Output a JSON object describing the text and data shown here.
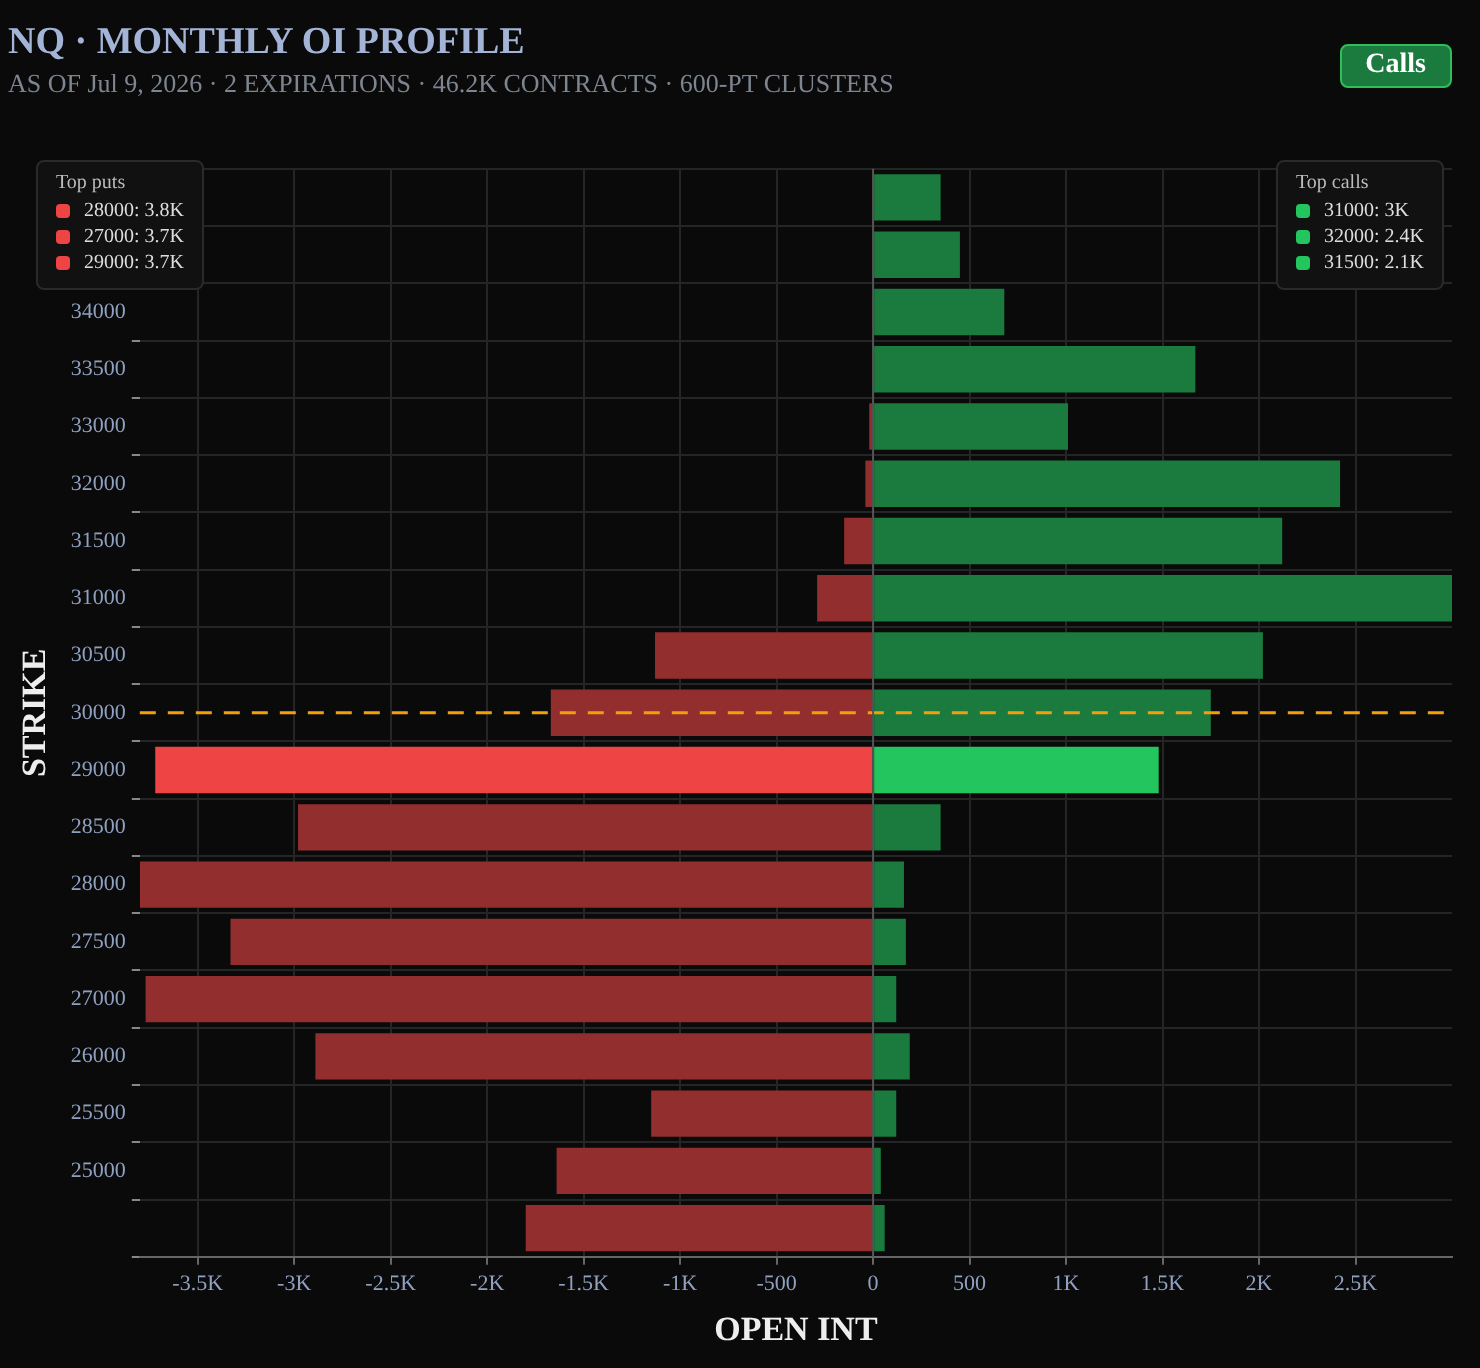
{
  "chart_data": {
    "type": "bar",
    "orientation": "horizontal",
    "title": "NQ · MONTHLY OI PROFILE",
    "subtitle": "AS OF Jul 9, 2026 · 2 EXPIRATIONS · 46.2K CONTRACTS · 600-PT CLUSTERS",
    "xlabel": "OPEN INT",
    "ylabel": "STRIKE",
    "categories": [
      null,
      null,
      "34000",
      "33500",
      "33000",
      "32000",
      "31500",
      "31000",
      "30500",
      "30000",
      "29000",
      "28500",
      "28000",
      "27500",
      "27000",
      "26000",
      "25500",
      "25000",
      null
    ],
    "series": [
      {
        "color": "#922e2e",
        "colors": [
          "#922e2e",
          "#922e2e",
          "#922e2e",
          "#922e2e",
          "#922e2e",
          "#922e2e",
          "#922e2e",
          "#922e2e",
          "#922e2e",
          "#922e2e",
          "#ef4444",
          "#922e2e",
          "#922e2e",
          "#922e2e",
          "#922e2e",
          "#922e2e",
          "#922e2e",
          "#922e2e",
          "#922e2e"
        ],
        "values": [
          0,
          0,
          0,
          0,
          -20,
          -40,
          -150,
          -290,
          -1130,
          -1670,
          -3720,
          -2980,
          -3800,
          -3330,
          -3770,
          -2890,
          -1150,
          -1640,
          -1800
        ]
      },
      {
        "color": "#1b7a3e",
        "colors": [
          "#1b7a3e",
          "#1b7a3e",
          "#1b7a3e",
          "#1b7a3e",
          "#1b7a3e",
          "#1b7a3e",
          "#1b7a3e",
          "#1b7a3e",
          "#1b7a3e",
          "#1b7a3e",
          "#22c55e",
          "#1b7a3e",
          "#1b7a3e",
          "#1b7a3e",
          "#1b7a3e",
          "#1b7a3e",
          "#1b7a3e",
          "#1b7a3e",
          "#1b7a3e"
        ],
        "values": [
          350,
          450,
          680,
          1670,
          1010,
          2420,
          2120,
          3000,
          2020,
          1750,
          1480,
          350,
          160,
          170,
          120,
          190,
          120,
          40,
          60
        ]
      }
    ],
    "xlim": [
      -3800,
      3000
    ],
    "xticks": [
      {
        "value": -3500,
        "label": "-3.5K"
      },
      {
        "value": -3000,
        "label": "-3K"
      },
      {
        "value": -2500,
        "label": "-2.5K"
      },
      {
        "value": -2000,
        "label": "-2K"
      },
      {
        "value": -1500,
        "label": "-1.5K"
      },
      {
        "value": -1000,
        "label": "-1K"
      },
      -500,
      0,
      500,
      {
        "value": 1000,
        "label": "1K"
      },
      {
        "value": 1500,
        "label": "1.5K"
      },
      {
        "value": 2000,
        "label": "2K"
      },
      {
        "value": 2500,
        "label": "2.5K"
      }
    ],
    "ref_lines": [
      {
        "axis": "y",
        "value": "30000",
        "color": "#f59e0b",
        "line_style": "dashed"
      }
    ],
    "grid": true,
    "legend": false,
    "stacked": true,
    "annotations": [
      "Calls",
      "Top puts",
      "28000: 3.8K",
      "27000: 3.7K",
      "29000: 3.7K",
      "Top calls",
      "31000: 3K",
      "32000: 2.4K",
      "31500: 2.1K"
    ]
  }
}
